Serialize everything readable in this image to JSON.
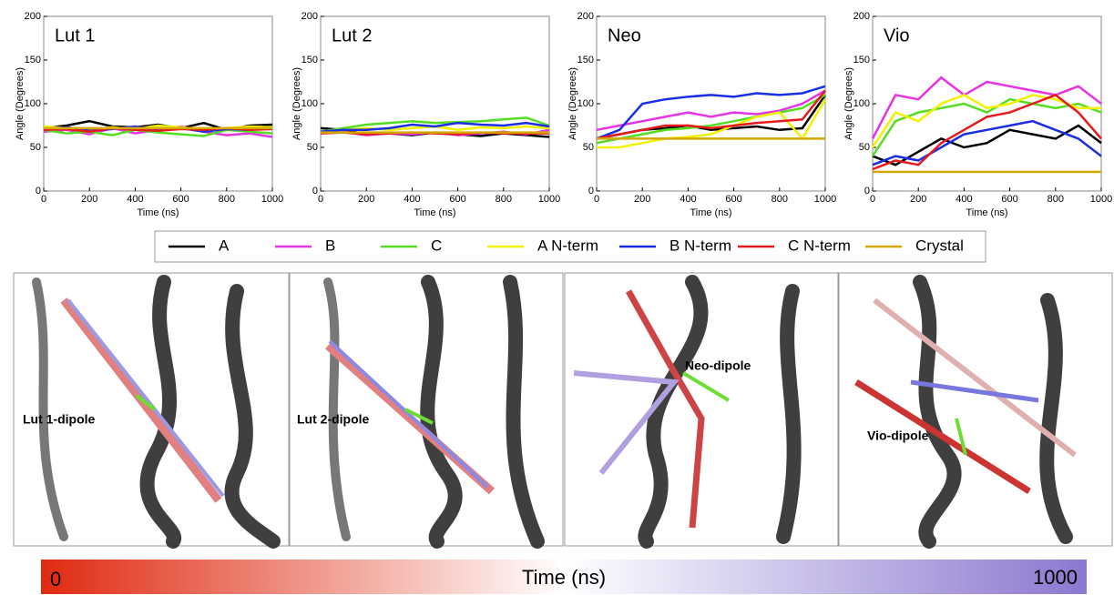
{
  "chart_data": [
    {
      "type": "line",
      "title": "Lut 1",
      "xlabel": "Time (ns)",
      "ylabel": "Angle (Degrees)",
      "xlim": [
        0,
        1000
      ],
      "xticks": [
        0,
        200,
        400,
        600,
        800,
        1000
      ],
      "ylim": [
        0,
        200
      ],
      "yticks": [
        0,
        50,
        100,
        150,
        200
      ],
      "x": [
        0,
        100,
        200,
        300,
        400,
        500,
        600,
        700,
        800,
        900,
        1000
      ],
      "series": [
        {
          "name": "A",
          "color": "#000000",
          "values": [
            72,
            75,
            80,
            74,
            73,
            76,
            72,
            78,
            70,
            75,
            76
          ]
        },
        {
          "name": "B",
          "color": "#e633e6",
          "values": [
            68,
            70,
            65,
            72,
            66,
            70,
            74,
            68,
            64,
            66,
            62
          ]
        },
        {
          "name": "C",
          "color": "#55dd22",
          "values": [
            70,
            66,
            68,
            64,
            70,
            67,
            65,
            63,
            70,
            68,
            66
          ]
        },
        {
          "name": "A N-term",
          "color": "#f2f200",
          "values": [
            74,
            72,
            70,
            73,
            71,
            75,
            73,
            70,
            72,
            74,
            73
          ]
        },
        {
          "name": "B N-term",
          "color": "#1a2ee6",
          "values": [
            70,
            73,
            69,
            71,
            74,
            70,
            72,
            68,
            71,
            70,
            72
          ]
        },
        {
          "name": "C N-term",
          "color": "#e61a1a",
          "values": [
            70,
            71,
            68,
            72,
            70,
            69,
            71,
            70,
            72,
            70,
            71
          ]
        },
        {
          "name": "Crystal",
          "color": "#d4a800",
          "values": [
            72,
            72,
            72,
            72,
            72,
            72,
            72,
            72,
            72,
            72,
            72
          ]
        }
      ]
    },
    {
      "type": "line",
      "title": "Lut 2",
      "xlabel": "Time (ns)",
      "ylabel": "Angle (Degrees)",
      "xlim": [
        0,
        1000
      ],
      "xticks": [
        0,
        200,
        400,
        600,
        800,
        1000
      ],
      "ylim": [
        0,
        200
      ],
      "yticks": [
        0,
        50,
        100,
        150,
        200
      ],
      "x": [
        0,
        100,
        200,
        300,
        400,
        500,
        600,
        700,
        800,
        900,
        1000
      ],
      "series": [
        {
          "values": [
            72,
            70,
            65,
            66,
            64,
            67,
            65,
            63,
            66,
            64,
            62
          ]
        },
        {
          "values": [
            66,
            68,
            64,
            66,
            65,
            67,
            64,
            66,
            68,
            65,
            70
          ]
        },
        {
          "values": [
            68,
            72,
            76,
            78,
            80,
            78,
            79,
            80,
            82,
            84,
            75
          ]
        },
        {
          "values": [
            66,
            70,
            72,
            70,
            72,
            74,
            70,
            73,
            72,
            74,
            72
          ]
        },
        {
          "values": [
            68,
            70,
            70,
            72,
            76,
            74,
            78,
            76,
            75,
            78,
            74
          ]
        },
        {
          "values": [
            66,
            67,
            65,
            66,
            67,
            66,
            65,
            67,
            66,
            66,
            66
          ]
        },
        {
          "values": [
            67,
            67,
            67,
            67,
            67,
            67,
            67,
            67,
            67,
            67,
            67
          ]
        }
      ]
    },
    {
      "type": "line",
      "title": "Neo",
      "xlabel": "Time (ns)",
      "ylabel": "Angle (Degrees)",
      "xlim": [
        0,
        1000
      ],
      "xticks": [
        0,
        200,
        400,
        600,
        800,
        1000
      ],
      "ylim": [
        0,
        200
      ],
      "yticks": [
        0,
        50,
        100,
        150,
        200
      ],
      "x": [
        0,
        100,
        200,
        300,
        400,
        500,
        600,
        700,
        800,
        900,
        1000
      ],
      "series": [
        {
          "values": [
            60,
            65,
            70,
            72,
            75,
            70,
            72,
            74,
            70,
            72,
            110
          ]
        },
        {
          "values": [
            70,
            75,
            80,
            85,
            90,
            85,
            90,
            88,
            92,
            100,
            115
          ]
        },
        {
          "values": [
            55,
            60,
            65,
            70,
            72,
            75,
            80,
            85,
            90,
            95,
            110
          ]
        },
        {
          "values": [
            50,
            50,
            55,
            60,
            62,
            65,
            75,
            85,
            90,
            60,
            105
          ]
        },
        {
          "values": [
            60,
            70,
            100,
            105,
            108,
            110,
            108,
            112,
            110,
            112,
            120
          ]
        },
        {
          "values": [
            60,
            65,
            70,
            75,
            75,
            72,
            75,
            78,
            80,
            82,
            115
          ]
        },
        {
          "values": [
            60,
            60,
            60,
            60,
            60,
            60,
            60,
            60,
            60,
            60,
            60
          ]
        }
      ]
    },
    {
      "type": "line",
      "title": "Vio",
      "xlabel": "Time (ns)",
      "ylabel": "Angle (Degrees)",
      "xlim": [
        0,
        1000
      ],
      "xticks": [
        0,
        200,
        400,
        600,
        800,
        1000
      ],
      "ylim": [
        0,
        200
      ],
      "yticks": [
        0,
        50,
        100,
        150,
        200
      ],
      "x": [
        0,
        100,
        200,
        300,
        400,
        500,
        600,
        700,
        800,
        900,
        1000
      ],
      "series": [
        {
          "values": [
            40,
            30,
            45,
            60,
            50,
            55,
            70,
            65,
            60,
            75,
            55
          ]
        },
        {
          "values": [
            60,
            110,
            105,
            130,
            110,
            125,
            120,
            115,
            110,
            120,
            100
          ]
        },
        {
          "values": [
            40,
            80,
            90,
            95,
            100,
            90,
            105,
            100,
            95,
            100,
            90
          ]
        },
        {
          "values": [
            50,
            90,
            80,
            100,
            110,
            95,
            100,
            110,
            105,
            95,
            95
          ]
        },
        {
          "values": [
            30,
            40,
            35,
            50,
            65,
            70,
            75,
            80,
            70,
            60,
            40
          ]
        },
        {
          "values": [
            25,
            35,
            30,
            55,
            70,
            85,
            90,
            100,
            110,
            90,
            60
          ]
        },
        {
          "values": [
            22,
            22,
            22,
            22,
            22,
            22,
            22,
            22,
            22,
            22,
            22
          ]
        }
      ]
    }
  ],
  "panels": [
    {
      "label": "Lut 1-dipole"
    },
    {
      "label": "Lut 2-dipole"
    },
    {
      "label": "Neo-dipole"
    },
    {
      "label": "Vio-dipole"
    }
  ],
  "colorbar": {
    "label": "Time (ns)",
    "min": 0,
    "max": 1000
  }
}
